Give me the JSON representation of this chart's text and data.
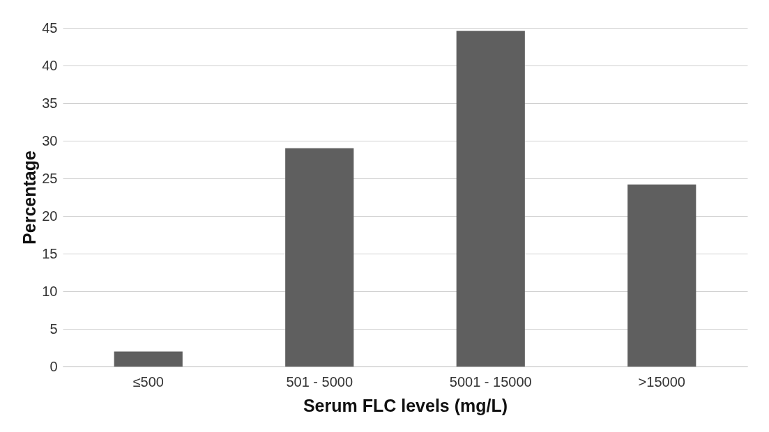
{
  "chart_data": {
    "type": "bar",
    "xlabel": "Serum FLC levels (mg/L)",
    "ylabel": "Percentage",
    "categories": [
      "≤500",
      "501 - 5000",
      "5001 - 15000",
      ">15000"
    ],
    "values": [
      2,
      29,
      44.6,
      24.2
    ],
    "color": "#5f5f5f",
    "ylim": [
      0,
      45
    ],
    "yticks": [
      0,
      5,
      10,
      15,
      20,
      25,
      30,
      35,
      40,
      45
    ],
    "grid": "y"
  }
}
